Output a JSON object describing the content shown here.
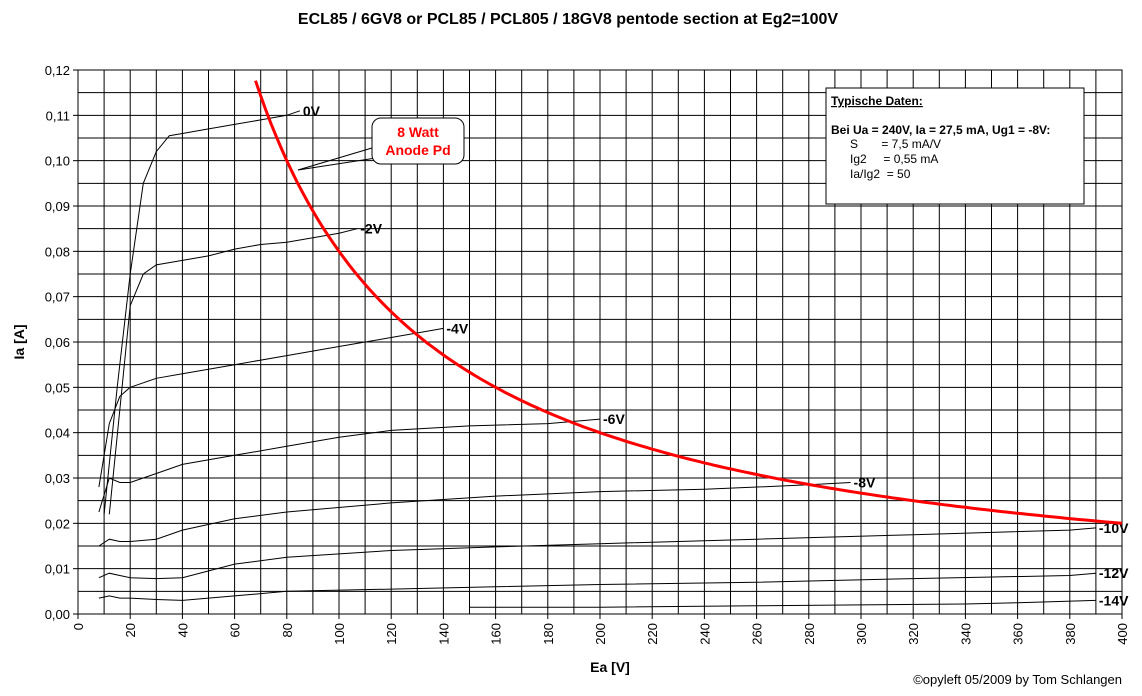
{
  "chart_data": {
    "type": "line",
    "title": "ECL85 / 6GV8 or PCL85 /  PCL805 / 18GV8 pentode section at Eg2=100V",
    "xlabel": "Ea [V]",
    "ylabel": "Ia [A]",
    "xlim": [
      0,
      400
    ],
    "ylim": [
      0,
      0.12
    ],
    "grid": true,
    "x_ticks": [
      "0",
      "20",
      "40",
      "60",
      "80",
      "100",
      "120",
      "140",
      "160",
      "180",
      "200",
      "220",
      "240",
      "260",
      "280",
      "300",
      "320",
      "340",
      "360",
      "380",
      "400"
    ],
    "y_ticks": [
      "0,00",
      "0,01",
      "0,02",
      "0,03",
      "0,04",
      "0,05",
      "0,06",
      "0,07",
      "0,08",
      "0,09",
      "0,10",
      "0,11",
      "0,12"
    ],
    "series": [
      {
        "name": "0V",
        "label": "0V",
        "x": [
          10,
          15,
          20,
          25,
          30,
          35,
          40,
          50,
          60,
          70,
          80,
          85
        ],
        "y": [
          0.022,
          0.05,
          0.075,
          0.095,
          0.102,
          0.1055,
          0.106,
          0.107,
          0.108,
          0.109,
          0.11,
          0.111
        ]
      },
      {
        "name": "-2V",
        "label": "-2V",
        "x": [
          12,
          16,
          20,
          25,
          30,
          40,
          50,
          60,
          70,
          80,
          90,
          100,
          107
        ],
        "y": [
          0.022,
          0.045,
          0.068,
          0.075,
          0.077,
          0.078,
          0.079,
          0.0805,
          0.0815,
          0.082,
          0.083,
          0.084,
          0.085
        ]
      },
      {
        "name": "-4V",
        "label": "-4V",
        "x": [
          8,
          12,
          16,
          20,
          25,
          30,
          40,
          60,
          80,
          100,
          120,
          140
        ],
        "y": [
          0.028,
          0.042,
          0.048,
          0.05,
          0.051,
          0.052,
          0.053,
          0.055,
          0.057,
          0.059,
          0.061,
          0.063
        ]
      },
      {
        "name": "-6V",
        "label": "-6V",
        "x": [
          8,
          12,
          16,
          20,
          30,
          40,
          60,
          80,
          100,
          120,
          150,
          180,
          200
        ],
        "y": [
          0.0225,
          0.03,
          0.029,
          0.029,
          0.031,
          0.033,
          0.035,
          0.037,
          0.039,
          0.0405,
          0.0415,
          0.042,
          0.043
        ]
      },
      {
        "name": "-8V",
        "label": "-8V",
        "x": [
          8,
          12,
          16,
          20,
          30,
          40,
          60,
          80,
          120,
          160,
          200,
          240,
          280,
          296
        ],
        "y": [
          0.015,
          0.0165,
          0.016,
          0.016,
          0.0165,
          0.0185,
          0.021,
          0.0225,
          0.0245,
          0.026,
          0.027,
          0.0275,
          0.0285,
          0.029
        ]
      },
      {
        "name": "-10V",
        "label": "-10V",
        "x": [
          8,
          12,
          16,
          20,
          30,
          40,
          60,
          80,
          120,
          160,
          200,
          260,
          320,
          380,
          390
        ],
        "y": [
          0.008,
          0.009,
          0.0085,
          0.008,
          0.0078,
          0.008,
          0.011,
          0.0125,
          0.014,
          0.0148,
          0.0155,
          0.0165,
          0.0175,
          0.0185,
          0.019
        ]
      },
      {
        "name": "-12V",
        "label": "-12V",
        "x": [
          8,
          12,
          16,
          20,
          30,
          40,
          60,
          80,
          120,
          160,
          200,
          260,
          320,
          380,
          390
        ],
        "y": [
          0.0035,
          0.004,
          0.0035,
          0.0035,
          0.0032,
          0.003,
          0.004,
          0.005,
          0.0055,
          0.006,
          0.0065,
          0.007,
          0.0078,
          0.0085,
          0.009
        ]
      },
      {
        "name": "-14V",
        "label": "-14V",
        "x": [
          150,
          200,
          260,
          300,
          340,
          360,
          390
        ],
        "y": [
          0.0015,
          0.0015,
          0.0018,
          0.002,
          0.0022,
          0.0025,
          0.003
        ]
      }
    ],
    "pd_curve": {
      "watts": 8,
      "x_range": [
        68,
        400
      ]
    }
  },
  "callout": {
    "line1": "8 Watt",
    "line2": "Anode Pd"
  },
  "info_box": {
    "title": "Typische  Daten:",
    "condition": "Bei Ua = 240V, Ia = 27,5 mA, Ug1 = -8V:",
    "lines": [
      "S       = 7,5 mA/V",
      "Ig2     = 0,55 mA",
      "Ia/Ig2  = 50"
    ]
  },
  "credit": "©opyleft 05/2009 by Tom Schlangen"
}
